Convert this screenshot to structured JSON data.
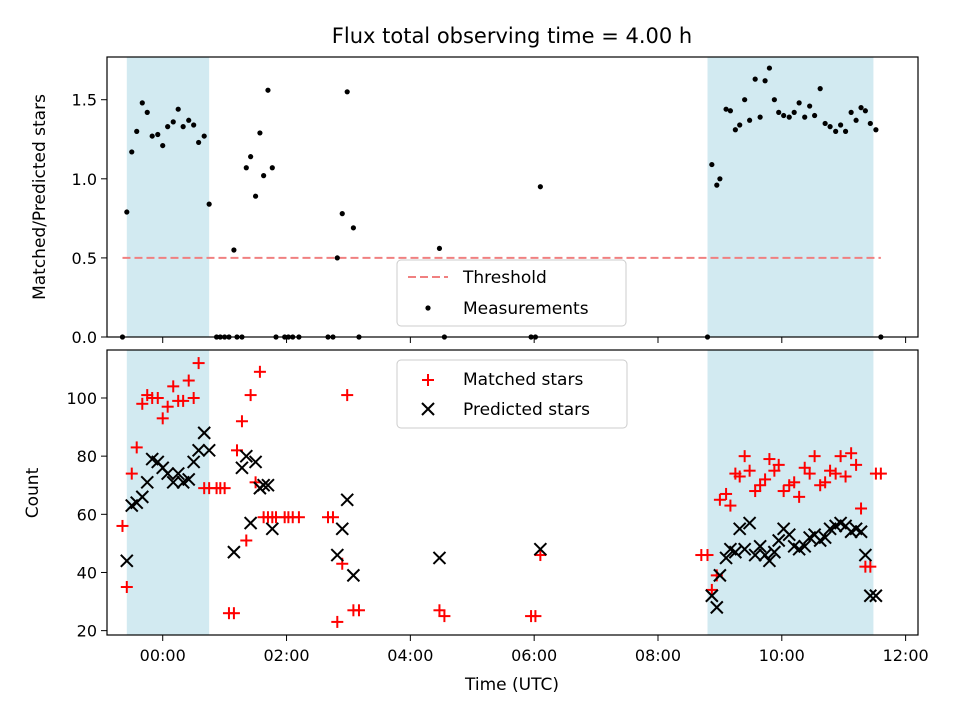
{
  "title": "Flux total observing time = 4.00 h",
  "colors": {
    "shade": "#add8e6",
    "threshold": "#f08080",
    "matched": "#ff0000",
    "predicted": "#000000",
    "measure": "#000000"
  },
  "chart_data": [
    {
      "type": "scatter",
      "name": "ratio-panel",
      "ylabel": "Matched/Predicted stars",
      "xlabel": "",
      "xlim": [
        -0.9,
        12.2
      ],
      "ylim": [
        0,
        1.77
      ],
      "yticks": [
        0,
        0.5,
        1.0,
        1.5
      ],
      "ytick_labels": [
        "0.0",
        "0.5",
        "1.0",
        "1.5"
      ],
      "xticks": [
        0,
        2,
        4,
        6,
        8,
        10,
        12
      ],
      "shaded_spans": [
        [
          -0.58,
          0.75
        ],
        [
          8.8,
          11.48
        ]
      ],
      "threshold": {
        "y": 0.5,
        "x": [
          -0.65,
          11.6
        ]
      },
      "legend": {
        "position": "lower-center",
        "entries": [
          "Threshold",
          "Measurements"
        ]
      },
      "series": [
        {
          "name": "Measurements",
          "x": [
            -0.65,
            -0.58,
            -0.5,
            -0.42,
            -0.33,
            -0.25,
            -0.17,
            -0.08,
            0,
            0.08,
            0.17,
            0.25,
            0.33,
            0.42,
            0.5,
            0.58,
            0.67,
            0.75,
            0.87,
            0.93,
            1.0,
            1.07,
            1.15,
            1.2,
            1.28,
            1.35,
            1.42,
            1.5,
            1.57,
            1.63,
            1.7,
            1.77,
            1.83,
            1.97,
            2.03,
            2.1,
            2.2,
            2.67,
            2.75,
            2.82,
            2.9,
            2.98,
            3.08,
            3.17,
            4.47,
            4.55,
            5.95,
            6.02,
            6.1,
            8.8,
            8.87,
            8.95,
            9.0,
            9.1,
            9.17,
            9.25,
            9.32,
            9.4,
            9.48,
            9.57,
            9.65,
            9.73,
            9.8,
            9.88,
            9.95,
            10.03,
            10.12,
            10.2,
            10.28,
            10.37,
            10.45,
            10.53,
            10.62,
            10.7,
            10.78,
            10.87,
            10.95,
            11.03,
            11.12,
            11.2,
            11.28,
            11.35,
            11.43,
            11.52,
            11.6
          ],
          "y": [
            0,
            0.79,
            1.17,
            1.3,
            1.48,
            1.42,
            1.27,
            1.28,
            1.21,
            1.33,
            1.36,
            1.44,
            1.33,
            1.37,
            1.34,
            1.23,
            1.27,
            0.84,
            0,
            0,
            0,
            0,
            0.55,
            0,
            0,
            1.07,
            1.14,
            0.89,
            1.29,
            1.02,
            1.56,
            1.07,
            0,
            0,
            0,
            0,
            0,
            0,
            0,
            0.5,
            0.78,
            1.55,
            0.69,
            0,
            0.56,
            0,
            0,
            0,
            0.95,
            0,
            1.09,
            0.96,
            1.0,
            1.44,
            1.43,
            1.31,
            1.34,
            1.5,
            1.37,
            1.63,
            1.39,
            1.62,
            1.7,
            1.5,
            1.42,
            1.4,
            1.39,
            1.42,
            1.48,
            1.39,
            1.46,
            1.4,
            1.57,
            1.35,
            1.33,
            1.3,
            1.34,
            1.3,
            1.42,
            1.37,
            1.45,
            1.43,
            1.35,
            1.31,
            0
          ]
        }
      ]
    },
    {
      "type": "scatter",
      "name": "count-panel",
      "ylabel": "Count",
      "xlabel": "Time (UTC)",
      "xlim": [
        -0.9,
        12.2
      ],
      "ylim": [
        18.5,
        116.5
      ],
      "yticks": [
        20,
        40,
        60,
        80,
        100
      ],
      "xticks": [
        0,
        2,
        4,
        6,
        8,
        10,
        12
      ],
      "xtick_labels": [
        "00:00",
        "02:00",
        "04:00",
        "06:00",
        "08:00",
        "10:00",
        "12:00"
      ],
      "shaded_spans": [
        [
          -0.58,
          0.75
        ],
        [
          8.8,
          11.48
        ]
      ],
      "legend": {
        "position": "upper-center",
        "entries": [
          "Matched stars",
          "Predicted stars"
        ]
      },
      "series": [
        {
          "name": "Matched stars",
          "x": [
            -0.65,
            -0.58,
            -0.5,
            -0.42,
            -0.33,
            -0.25,
            -0.17,
            -0.08,
            0,
            0.08,
            0.17,
            0.25,
            0.33,
            0.42,
            0.5,
            0.58,
            0.67,
            0.75,
            0.87,
            0.93,
            1.0,
            1.07,
            1.15,
            1.2,
            1.28,
            1.35,
            1.42,
            1.5,
            1.57,
            1.63,
            1.7,
            1.77,
            1.83,
            1.97,
            2.03,
            2.1,
            2.2,
            2.67,
            2.75,
            2.82,
            2.9,
            2.98,
            3.08,
            3.17,
            4.47,
            4.55,
            5.95,
            6.02,
            6.1,
            8.7,
            8.8,
            8.87,
            8.95,
            9.0,
            9.1,
            9.17,
            9.25,
            9.32,
            9.4,
            9.48,
            9.57,
            9.65,
            9.73,
            9.8,
            9.88,
            9.95,
            10.03,
            10.12,
            10.2,
            10.28,
            10.37,
            10.45,
            10.53,
            10.62,
            10.7,
            10.78,
            10.87,
            10.95,
            11.03,
            11.12,
            11.2,
            11.28,
            11.35,
            11.43,
            11.52,
            11.6
          ],
          "y": [
            56,
            35,
            74,
            83,
            98,
            101,
            100,
            100,
            93,
            97,
            104,
            99,
            99,
            106,
            100,
            112,
            69,
            69,
            69,
            69,
            69,
            26,
            26,
            82,
            92,
            51,
            101,
            71,
            109,
            59,
            59,
            59,
            59,
            59,
            59,
            59,
            59,
            59,
            59,
            23,
            43,
            101,
            27,
            27,
            27,
            25,
            25,
            25,
            46,
            46,
            46,
            34,
            39,
            65,
            67,
            63,
            74,
            73,
            80,
            75,
            68,
            70,
            72,
            79,
            75,
            77,
            68,
            70,
            71,
            66,
            76,
            74,
            80,
            70,
            71,
            75,
            74,
            80,
            73,
            81,
            77,
            62,
            42,
            42,
            74,
            74
          ],
          "y_order_note": ""
        },
        {
          "name": "Predicted stars",
          "x": [
            -0.58,
            -0.5,
            -0.42,
            -0.33,
            -0.25,
            -0.17,
            -0.08,
            0,
            0.08,
            0.17,
            0.25,
            0.33,
            0.42,
            0.5,
            0.58,
            0.67,
            0.75,
            1.15,
            1.28,
            1.35,
            1.42,
            1.5,
            1.57,
            1.63,
            1.7,
            1.77,
            2.82,
            2.9,
            2.98,
            3.08,
            4.47,
            6.1,
            8.87,
            8.95,
            9.0,
            9.1,
            9.17,
            9.25,
            9.32,
            9.4,
            9.48,
            9.57,
            9.65,
            9.73,
            9.8,
            9.88,
            9.95,
            10.03,
            10.12,
            10.2,
            10.28,
            10.37,
            10.45,
            10.53,
            10.62,
            10.7,
            10.78,
            10.87,
            10.95,
            11.03,
            11.12,
            11.2,
            11.28,
            11.35,
            11.43,
            11.52
          ],
          "y": [
            44,
            63,
            64,
            66,
            71,
            79,
            78,
            76,
            74,
            71,
            74,
            71,
            72,
            78,
            82,
            88,
            82,
            47,
            76,
            80,
            57,
            78,
            69,
            70,
            70,
            55,
            46,
            55,
            65,
            39,
            45,
            48,
            32,
            28,
            39,
            45,
            48,
            47,
            55,
            48,
            57,
            46,
            49,
            46,
            44,
            47,
            51,
            55,
            53,
            49,
            48,
            49,
            52,
            53,
            51,
            52,
            55,
            56,
            57,
            56,
            54,
            55,
            54,
            46,
            32,
            32
          ]
        }
      ]
    }
  ]
}
